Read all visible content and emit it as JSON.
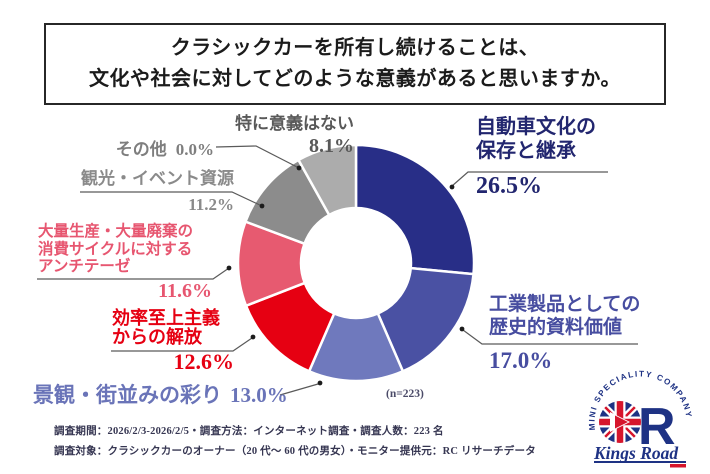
{
  "title": {
    "line1": "クラシックカーを所有し続けることは、",
    "line2": "文化や社会に対してどのような意義があると思いますか。"
  },
  "chart_data": {
    "type": "pie",
    "donut": true,
    "start_angle_deg": -90,
    "direction": "clockwise",
    "sample_note": "(n=223)",
    "legend_position": "around-chart",
    "series": [
      {
        "label": "自動車文化の保存と継承",
        "label_lines": [
          "自動車文化の",
          "保存と継承"
        ],
        "value": 26.5,
        "display": "26.5%",
        "color": "#282e87",
        "text_color": "#22266f"
      },
      {
        "label": "工業製品としての歴史的資料価値",
        "label_lines": [
          "工業製品としての",
          "歴史的資料価値"
        ],
        "value": 17.0,
        "display": "17.0%",
        "color": "#4a51a3",
        "text_color": "#474da0"
      },
      {
        "label": "景観・街並みの彩り",
        "label_lines": [
          "景観・街並みの彩り"
        ],
        "value": 13.0,
        "display": "13.0%",
        "color": "#6f79bd",
        "text_color": "#6a74b8"
      },
      {
        "label": "効率至上主義からの解放",
        "label_lines": [
          "効率至上主義",
          "からの解放"
        ],
        "value": 12.6,
        "display": "12.6%",
        "color": "#e60012",
        "text_color": "#e60012"
      },
      {
        "label": "大量生産・大量廃棄の消費サイクルに対するアンチテーゼ",
        "label_lines": [
          "大量生産・大量廃棄の",
          "消費サイクルに対する",
          "アンチテーゼ"
        ],
        "value": 11.6,
        "display": "11.6%",
        "color": "#e75a70",
        "text_color": "#e75670"
      },
      {
        "label": "観光・イベント資源",
        "label_lines": [
          "観光・イベント資源"
        ],
        "value": 11.2,
        "display": "11.2%",
        "color": "#8c8c8c",
        "text_color": "#8a8a8a"
      },
      {
        "label": "その他",
        "label_lines": [
          "その他"
        ],
        "value": 0.0,
        "display": "0.0%",
        "color": "#8c8c8c",
        "text_color": "#7e7e7e"
      },
      {
        "label": "特に意義はない",
        "label_lines": [
          "特に意義はない"
        ],
        "value": 8.1,
        "display": "8.1%",
        "color": "#acacac",
        "text_color": "#595959"
      }
    ]
  },
  "footer": {
    "line1": "調査期間：2026/2/3-2026/2/5・調査方法：インターネット調査・調査人数：223 名",
    "line2": "調査対象：クラシックカーのオーナー（20 代〜 60 代の男女）・モニター提供元：RC リサーチデータ"
  },
  "logo": {
    "arc_text": "MINI SPECIALITY COMPANY",
    "name": "Kings Road",
    "brand_navy": "#1e3284",
    "brand_red": "#d6152c"
  }
}
